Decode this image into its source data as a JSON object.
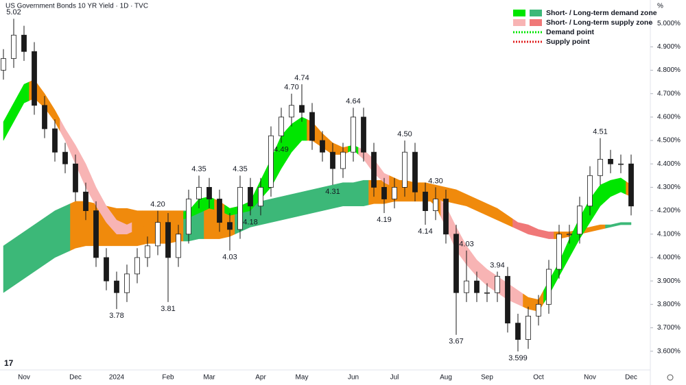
{
  "chart_data": {
    "type": "candlestick",
    "title": "US Government Bonds 10 YR Yield · 1D · TVC",
    "y_unit": "%",
    "categories": [
      null,
      null,
      "Nov",
      null,
      null,
      null,
      null,
      "Dec",
      null,
      null,
      null,
      "2024",
      null,
      null,
      null,
      null,
      "Feb",
      null,
      null,
      null,
      "Mar",
      null,
      null,
      null,
      null,
      "Apr",
      null,
      null,
      null,
      "May",
      null,
      null,
      null,
      null,
      "Jun",
      null,
      null,
      null,
      "Jul",
      null,
      null,
      null,
      null,
      "Aug",
      null,
      null,
      null,
      "Sep",
      null,
      null,
      null,
      null,
      "Oct",
      null,
      null,
      null,
      null,
      "Nov",
      null,
      null,
      null,
      "Dec"
    ],
    "open": [
      4.8,
      4.85,
      4.95,
      4.88,
      4.65,
      4.55,
      4.45,
      4.4,
      4.28,
      4.2,
      4.0,
      3.9,
      3.85,
      3.93,
      4.0,
      4.05,
      4.15,
      4.0,
      4.1,
      4.25,
      4.3,
      4.25,
      4.15,
      4.12,
      4.3,
      4.22,
      4.3,
      4.52,
      4.6,
      4.65,
      4.62,
      4.5,
      4.45,
      4.38,
      4.45,
      4.6,
      4.45,
      4.3,
      4.25,
      4.3,
      4.45,
      4.28,
      4.2,
      4.25,
      4.1,
      3.85,
      3.9,
      3.85,
      3.85,
      3.92,
      3.72,
      3.65,
      3.75,
      3.8,
      3.95,
      4.1,
      4.1,
      4.22,
      4.35,
      4.42,
      4.4,
      4.4
    ],
    "high": [
      4.89,
      5.02,
      4.99,
      4.92,
      4.69,
      4.59,
      4.49,
      4.44,
      4.32,
      4.24,
      4.04,
      3.94,
      3.97,
      4.04,
      4.09,
      4.2,
      4.19,
      4.14,
      4.29,
      4.35,
      4.34,
      4.29,
      4.19,
      4.35,
      4.34,
      4.34,
      4.56,
      4.64,
      4.7,
      4.74,
      4.66,
      4.54,
      4.49,
      4.49,
      4.64,
      4.64,
      4.49,
      4.34,
      4.34,
      4.5,
      4.49,
      4.32,
      4.3,
      4.29,
      4.14,
      4.03,
      3.94,
      3.89,
      3.94,
      3.96,
      3.76,
      3.79,
      3.84,
      3.99,
      4.14,
      4.14,
      4.26,
      4.39,
      4.51,
      4.46,
      4.44,
      4.44
    ],
    "low": [
      4.76,
      4.81,
      4.84,
      4.61,
      4.51,
      4.41,
      4.36,
      4.24,
      4.16,
      3.96,
      3.86,
      3.78,
      3.81,
      3.89,
      3.96,
      4.01,
      3.81,
      3.96,
      4.06,
      4.21,
      4.21,
      4.11,
      4.03,
      4.08,
      4.18,
      4.18,
      4.26,
      4.49,
      4.56,
      4.58,
      4.46,
      4.41,
      4.31,
      4.34,
      4.41,
      4.41,
      4.26,
      4.19,
      4.21,
      4.26,
      4.24,
      4.14,
      4.16,
      4.06,
      3.67,
      3.81,
      3.81,
      3.81,
      3.81,
      3.68,
      3.599,
      3.61,
      3.71,
      3.76,
      3.91,
      4.06,
      4.06,
      4.18,
      4.31,
      4.36,
      4.36,
      4.18
    ],
    "close": [
      4.85,
      4.95,
      4.88,
      4.65,
      4.55,
      4.45,
      4.4,
      4.28,
      4.2,
      4.0,
      3.9,
      3.85,
      3.93,
      4.0,
      4.05,
      4.15,
      4.0,
      4.1,
      4.25,
      4.3,
      4.25,
      4.15,
      4.12,
      4.3,
      4.22,
      4.3,
      4.52,
      4.6,
      4.65,
      4.62,
      4.5,
      4.45,
      4.38,
      4.45,
      4.6,
      4.45,
      4.3,
      4.25,
      4.3,
      4.45,
      4.28,
      4.2,
      4.25,
      4.1,
      3.85,
      3.9,
      3.85,
      3.85,
      3.92,
      3.72,
      3.65,
      3.75,
      3.8,
      3.95,
      4.1,
      4.1,
      4.22,
      4.35,
      4.42,
      4.4,
      4.4,
      4.22
    ],
    "high_labels": [
      null,
      "5.02",
      null,
      null,
      null,
      null,
      null,
      null,
      null,
      null,
      null,
      null,
      null,
      null,
      null,
      "4.20",
      null,
      null,
      null,
      "4.35",
      null,
      null,
      null,
      "4.35",
      null,
      null,
      null,
      null,
      "4.70",
      "4.74",
      null,
      null,
      null,
      null,
      "4.64",
      null,
      null,
      null,
      null,
      "4.50",
      null,
      null,
      "4.30",
      null,
      null,
      "4.03",
      null,
      null,
      "3.94",
      null,
      null,
      null,
      null,
      null,
      null,
      null,
      null,
      null,
      "4.51",
      null,
      null,
      null
    ],
    "low_labels": [
      null,
      null,
      null,
      null,
      null,
      null,
      null,
      null,
      null,
      null,
      null,
      "3.78",
      null,
      null,
      null,
      null,
      "3.81",
      null,
      null,
      null,
      null,
      null,
      "4.03",
      null,
      "4.18",
      null,
      null,
      "4.49",
      null,
      null,
      null,
      null,
      "4.31",
      null,
      null,
      null,
      null,
      "4.19",
      null,
      null,
      null,
      "4.14",
      null,
      null,
      "3.67",
      null,
      null,
      null,
      null,
      null,
      "3.599",
      null,
      null,
      null,
      null,
      null,
      null,
      null,
      null,
      null,
      null,
      null
    ],
    "up_color": "#ffffff",
    "down_color": "#1a1a1a",
    "bands": [
      {
        "lower": [
          3.85,
          3.88,
          3.91,
          3.94,
          3.97,
          4.0,
          4.02,
          4.04,
          4.05,
          4.05,
          4.05,
          4.05,
          4.05,
          4.05,
          4.06,
          4.06,
          4.06,
          4.07,
          4.07,
          4.08,
          4.08,
          4.08,
          4.09,
          4.11,
          4.13,
          4.14,
          4.15,
          4.16,
          4.17,
          4.18,
          4.19,
          4.2,
          4.21,
          4.22,
          4.22,
          4.22,
          4.23,
          4.23,
          4.24,
          4.24,
          4.24,
          4.24,
          4.24,
          4.24,
          4.23,
          4.22,
          4.2,
          4.18,
          4.16,
          4.14,
          4.12,
          4.1,
          4.09,
          4.08,
          4.08,
          4.09,
          4.1,
          4.11,
          4.12,
          4.13,
          4.14,
          4.14
        ],
        "upper": [
          4.05,
          4.08,
          4.11,
          4.14,
          4.17,
          4.2,
          4.22,
          4.24,
          4.24,
          4.23,
          4.22,
          4.21,
          4.21,
          4.2,
          4.2,
          4.2,
          4.2,
          4.2,
          4.2,
          4.21,
          4.21,
          4.21,
          4.21,
          4.22,
          4.23,
          4.24,
          4.25,
          4.26,
          4.27,
          4.28,
          4.29,
          4.3,
          4.31,
          4.32,
          4.32,
          4.33,
          4.33,
          4.33,
          4.33,
          4.33,
          4.32,
          4.32,
          4.31,
          4.3,
          4.29,
          4.27,
          4.25,
          4.23,
          4.21,
          4.18,
          4.15,
          4.14,
          4.12,
          4.11,
          4.11,
          4.11,
          4.12,
          4.13,
          4.14,
          4.14,
          4.15,
          4.15
        ],
        "colors": [
          "#3cb878",
          "#3cb878",
          "#3cb878",
          "#3cb878",
          "#3cb878",
          "#3cb878",
          "#3cb878",
          "#f08a0c",
          "#f08a0c",
          "#f08a0c",
          "#f08a0c",
          "#f08a0c",
          "#f08a0c",
          "#f08a0c",
          "#f08a0c",
          "#f08a0c",
          "#f08a0c",
          "#f08a0c",
          "#3cb878",
          "#3cb878",
          "#f08a0c",
          "#f08a0c",
          "#f08a0c",
          "#3cb878",
          "#3cb878",
          "#3cb878",
          "#3cb878",
          "#3cb878",
          "#3cb878",
          "#3cb878",
          "#3cb878",
          "#3cb878",
          "#3cb878",
          "#3cb878",
          "#3cb878",
          "#3cb878",
          "#f08a0c",
          "#f08a0c",
          "#f08a0c",
          "#f08a0c",
          "#f08a0c",
          "#f08a0c",
          "#f08a0c",
          "#f08a0c",
          "#f08a0c",
          "#f08a0c",
          "#f08a0c",
          "#f08a0c",
          "#f08a0c",
          "#f08a0c",
          "#f07878",
          "#f07878",
          "#f07878",
          "#f07878",
          "#f08a0c",
          "#f08a0c",
          "#f08a0c",
          "#f08a0c",
          "#f08a0c",
          "#3cb878",
          "#3cb878",
          "#3cb878"
        ]
      },
      {
        "lower": [
          4.5,
          4.58,
          4.66,
          4.68,
          4.64,
          4.58,
          4.5,
          4.4,
          4.3,
          4.22,
          4.15,
          4.1,
          4.1,
          4.12,
          4.14,
          4.15,
          4.15,
          4.16,
          4.17,
          4.19,
          4.21,
          4.2,
          4.18,
          4.19,
          4.2,
          4.25,
          4.3,
          4.38,
          4.45,
          4.5,
          4.5,
          4.47,
          4.44,
          4.44,
          4.46,
          4.42,
          4.36,
          4.32,
          4.3,
          4.3,
          4.28,
          4.26,
          4.22,
          4.13,
          4.03,
          3.97,
          3.92,
          3.88,
          3.85,
          3.82,
          3.8,
          3.78,
          3.77,
          3.84,
          3.92,
          4.0,
          4.08,
          4.15,
          4.22,
          4.26,
          4.28,
          4.26
        ],
        "upper": [
          4.58,
          4.66,
          4.74,
          4.76,
          4.7,
          4.63,
          4.55,
          4.48,
          4.4,
          4.3,
          4.22,
          4.16,
          4.14,
          4.16,
          4.18,
          4.19,
          4.18,
          4.19,
          4.2,
          4.25,
          4.26,
          4.24,
          4.21,
          4.22,
          4.24,
          4.33,
          4.42,
          4.52,
          4.57,
          4.6,
          4.58,
          4.53,
          4.49,
          4.47,
          4.48,
          4.46,
          4.42,
          4.36,
          4.34,
          4.32,
          4.31,
          4.29,
          4.27,
          4.22,
          4.13,
          4.05,
          3.99,
          3.95,
          3.92,
          3.89,
          3.86,
          3.83,
          3.82,
          3.9,
          3.98,
          4.08,
          4.17,
          4.25,
          4.31,
          4.33,
          4.34,
          4.31
        ],
        "colors": [
          "#00e600",
          "#00e600",
          "#00e600",
          "#f08a0c",
          "#f08a0c",
          "#f08a0c",
          "#f8b4b4",
          "#f8b4b4",
          "#f8b4b4",
          "#f8b4b4",
          "#f8b4b4",
          "#f8b4b4",
          "#f8b4b4",
          "#f08a0c",
          "#f08a0c",
          "#f08a0c",
          "#f08a0c",
          "#f08a0c",
          "#00e600",
          "#00e600",
          "#00e600",
          "#f08a0c",
          "#00e600",
          "#00e600",
          "#00e600",
          "#00e600",
          "#00e600",
          "#00e600",
          "#00e600",
          "#00e600",
          "#f08a0c",
          "#f08a0c",
          "#f08a0c",
          "#f08a0c",
          "#00e600",
          "#f8b4b4",
          "#f8b4b4",
          "#f8b4b4",
          "#f08a0c",
          "#f08a0c",
          "#f08a0c",
          "#f08a0c",
          "#f08a0c",
          "#f8b4b4",
          "#f8b4b4",
          "#f8b4b4",
          "#f8b4b4",
          "#f8b4b4",
          "#f8b4b4",
          "#f8b4b4",
          "#f8b4b4",
          "#f08a0c",
          "#f08a0c",
          "#00e600",
          "#00e600",
          "#00e600",
          "#00e600",
          "#00e600",
          "#00e600",
          "#00e600",
          "#00e600",
          "#f08a0c"
        ]
      }
    ],
    "legend": [
      {
        "label": "Short- / Long-term demand zone",
        "colors": [
          "#00e600",
          "#3cb878"
        ]
      },
      {
        "label": "Short- / Long-term supply zone",
        "colors": [
          "#f8b4b4",
          "#f07878"
        ]
      },
      {
        "label": "Demand point",
        "colors": [
          "#00e600"
        ],
        "dotted": true
      },
      {
        "label": "Supply point",
        "colors": [
          "#e02020"
        ],
        "dotted": true
      }
    ],
    "ylim": [
      3.52,
      5.1
    ],
    "yticks": [
      {
        "value": 3.6,
        "label": "3.600%"
      },
      {
        "value": 3.7,
        "label": "3.700%"
      },
      {
        "value": 3.8,
        "label": "3.800%"
      },
      {
        "value": 3.9,
        "label": "3.900%"
      },
      {
        "value": 4.0,
        "label": "4.000%"
      },
      {
        "value": 4.1,
        "label": "4.100%"
      },
      {
        "value": 4.2,
        "label": "4.200%"
      },
      {
        "value": 4.3,
        "label": "4.300%"
      },
      {
        "value": 4.4,
        "label": "4.400%"
      },
      {
        "value": 4.5,
        "label": "4.500%"
      },
      {
        "value": 4.6,
        "label": "4.600%"
      },
      {
        "value": 4.7,
        "label": "4.700%"
      },
      {
        "value": 4.8,
        "label": "4.800%"
      },
      {
        "value": 4.9,
        "label": "4.900%"
      },
      {
        "value": 5.0,
        "label": "5.000%"
      }
    ],
    "grid": false
  }
}
